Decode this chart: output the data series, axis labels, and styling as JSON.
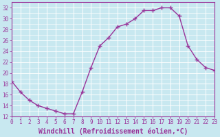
{
  "x": [
    0,
    1,
    2,
    3,
    4,
    5,
    6,
    7,
    8,
    9,
    10,
    11,
    12,
    13,
    14,
    15,
    16,
    17,
    18,
    19,
    20,
    21,
    22,
    23
  ],
  "y": [
    18.5,
    16.5,
    15.0,
    14.0,
    13.5,
    13.0,
    12.5,
    12.5,
    16.5,
    21.0,
    25.0,
    26.5,
    28.5,
    29.0,
    30.0,
    31.5,
    31.5,
    32.0,
    32.0,
    30.5,
    25.0,
    22.5,
    21.0,
    20.5
  ],
  "line_color": "#993399",
  "marker": "+",
  "markersize": 4,
  "linewidth": 1.0,
  "markeredgewidth": 1.0,
  "bg_color": "#c8e8f0",
  "grid_color": "#b0d8e8",
  "grid_color_major": "#a0c8e0",
  "title": "",
  "xlabel": "Windchill (Refroidissement éolien,°C)",
  "ylabel": "",
  "xlim": [
    0,
    23
  ],
  "ylim": [
    12,
    33
  ],
  "yticks": [
    12,
    14,
    16,
    18,
    20,
    22,
    24,
    26,
    28,
    30,
    32
  ],
  "xtick_labels": [
    "0",
    "1",
    "2",
    "3",
    "4",
    "5",
    "6",
    "7",
    "8",
    "9",
    "10",
    "11",
    "12",
    "13",
    "14",
    "15",
    "16",
    "17",
    "18",
    "19",
    "20",
    "21",
    "22",
    "23"
  ],
  "tick_color": "#993399",
  "axis_color": "#993399",
  "label_fontsize": 6.5,
  "tick_fontsize": 5.5,
  "xlabel_fontsize": 7.0
}
